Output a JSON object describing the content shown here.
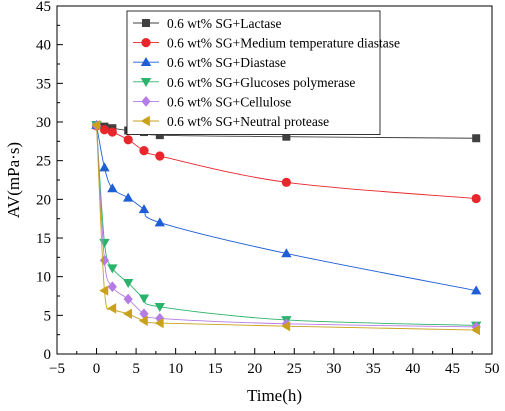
{
  "chart_data": {
    "type": "line",
    "xlabel": "Time(h)",
    "ylabel": "AV(mPa·s)",
    "xlim": [
      -5,
      50
    ],
    "ylim": [
      0,
      45
    ],
    "xticks": [
      -5,
      0,
      5,
      10,
      15,
      20,
      25,
      30,
      35,
      40,
      45,
      50
    ],
    "yticks": [
      0,
      5,
      10,
      15,
      20,
      25,
      30,
      35,
      40,
      45
    ],
    "grid": false,
    "legend_position": "top-left",
    "series": [
      {
        "name": "0.6 wt% SG+Lactase",
        "color": "#404040",
        "marker": "square",
        "x": [
          0,
          1,
          2,
          4,
          6,
          8,
          24,
          48
        ],
        "y": [
          29.6,
          29.4,
          29.2,
          28.9,
          28.7,
          28.3,
          28.1,
          27.9
        ]
      },
      {
        "name": "0.6 wt% SG+Medium temperature diastase",
        "color": "#e8262b",
        "marker": "circle",
        "x": [
          0,
          1,
          2,
          4,
          6,
          8,
          24,
          48
        ],
        "y": [
          29.5,
          29.0,
          28.7,
          27.7,
          26.3,
          25.6,
          22.2,
          20.1
        ]
      },
      {
        "name": "0.6 wt% SG+Diastase",
        "color": "#1f5fd6",
        "marker": "triangle-up",
        "x": [
          0,
          1,
          2,
          4,
          6,
          8,
          24,
          48
        ],
        "y": [
          29.6,
          24.1,
          21.4,
          20.2,
          18.7,
          17.0,
          13.0,
          8.2
        ]
      },
      {
        "name": "0.6 wt% SG+Glucoses polymerase",
        "color": "#2cb36b",
        "marker": "triangle-down",
        "x": [
          0,
          1,
          2,
          4,
          6,
          8,
          24,
          48
        ],
        "y": [
          29.6,
          14.4,
          11.1,
          9.2,
          7.2,
          6.1,
          4.4,
          3.7
        ]
      },
      {
        "name": "0.6 wt% SG+Cellulose",
        "color": "#b57ce6",
        "marker": "diamond",
        "x": [
          0,
          1,
          2,
          4,
          6,
          8,
          24,
          48
        ],
        "y": [
          29.5,
          12.1,
          8.7,
          7.1,
          5.2,
          4.6,
          3.9,
          3.5
        ]
      },
      {
        "name": "0.6 wt% SG+Neutral protease",
        "color": "#c9a11b",
        "marker": "triangle-left",
        "x": [
          0,
          1,
          2,
          4,
          6,
          8,
          24,
          48
        ],
        "y": [
          29.6,
          8.2,
          5.9,
          5.2,
          4.3,
          4.0,
          3.6,
          3.1
        ]
      }
    ]
  }
}
